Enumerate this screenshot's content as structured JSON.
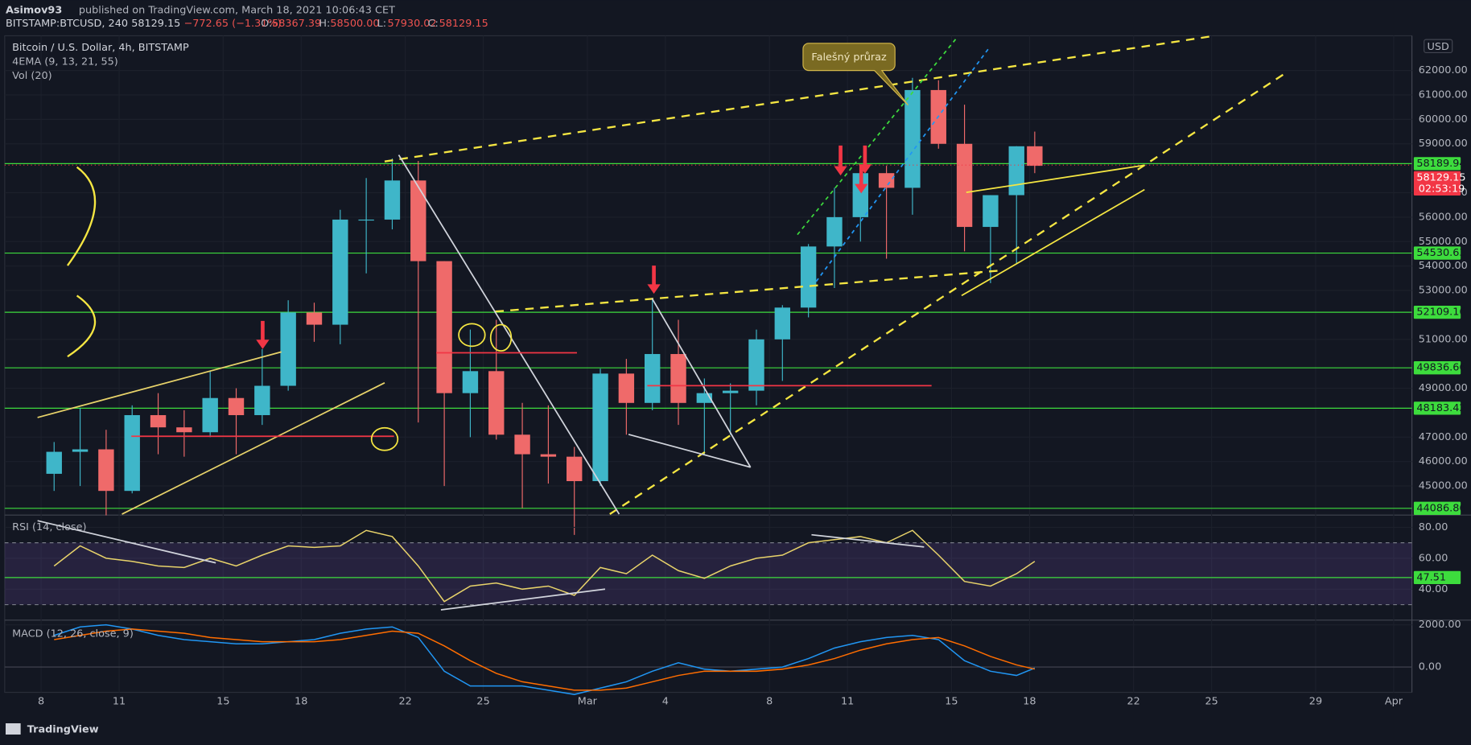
{
  "header": {
    "author": "Asimov93",
    "published": "published on TradingView.com, March 18, 2021 10:06:43 CET",
    "symbol": "BITSTAMP:BTCUSD, 240",
    "price": "58129.15",
    "change": "−772.65 (−1.31%)",
    "open_label": "O:",
    "open": "58367.39",
    "high_label": "H:",
    "high": "58500.00",
    "low_label": "L:",
    "low": "57930.02",
    "close_label": "C:",
    "close": "58129.15"
  },
  "legend": {
    "title": "Bitcoin / U.S. Dollar, 4h, BITSTAMP",
    "ema": "4EMA (9, 13, 21, 55)",
    "volume": "Vol (20)"
  },
  "currency": "USD",
  "callout": "Falešný průraz",
  "footer": "TradingView",
  "chart_data": [
    {
      "type": "candlestick",
      "up_color": "#3fb6c9",
      "down_color": "#ef6a6a",
      "level_color": "#3ddc3d",
      "last_color": "#f23645",
      "x": [
        8.5,
        9.5,
        10.5,
        11.5,
        12.5,
        13.5,
        14.5,
        15.5,
        16.5,
        17.5,
        18.5,
        19.5,
        20.5,
        21.5,
        22.5,
        23.5,
        24.5,
        25.5,
        26.5,
        27.5,
        28.5,
        29.5,
        30.5,
        31.5,
        32.5,
        33.5,
        34.5,
        35.5,
        36.5,
        37.5,
        38.5,
        39.5,
        40.5,
        41.5,
        42.5,
        43.5,
        44.5,
        45.5,
        46.2
      ],
      "open": [
        45500,
        46400,
        46500,
        44800,
        47900,
        47400,
        47200,
        48600,
        47900,
        49100,
        52100,
        51600,
        55900,
        55900,
        57500,
        54200,
        48800,
        49700,
        47100,
        46300,
        46200,
        45200,
        49600,
        48400,
        50400,
        48400,
        48800,
        48900,
        51000,
        52300,
        54800,
        56000,
        57800,
        57200,
        61200,
        59000,
        55600,
        56900,
        58900
      ],
      "high": [
        46800,
        48200,
        47300,
        48300,
        48800,
        48100,
        49700,
        49000,
        50600,
        52600,
        52500,
        56300,
        57600,
        58400,
        58300,
        54200,
        51400,
        51800,
        48400,
        48300,
        46600,
        49800,
        50200,
        52600,
        51800,
        49400,
        49200,
        51400,
        52400,
        54900,
        57200,
        57900,
        58100,
        61700,
        61600,
        60600,
        56900,
        58900,
        59500
      ],
      "low": [
        44800,
        45000,
        43800,
        44700,
        46300,
        46200,
        47000,
        46300,
        47500,
        48900,
        50900,
        50800,
        53700,
        55500,
        47600,
        45000,
        47000,
        46900,
        44100,
        45100,
        43000,
        45000,
        47100,
        48100,
        47500,
        46300,
        47100,
        48300,
        49300,
        51900,
        53100,
        55000,
        54300,
        56100,
        58800,
        54600,
        53300,
        54100,
        57800
      ],
      "close": [
        46400,
        46500,
        44800,
        47900,
        47400,
        47200,
        48600,
        47900,
        49100,
        52100,
        51600,
        55900,
        55900,
        57500,
        54200,
        48800,
        49700,
        47100,
        46300,
        46200,
        45200,
        49600,
        48400,
        50400,
        48400,
        48800,
        48900,
        51000,
        52300,
        54800,
        56000,
        57800,
        57200,
        61200,
        59000,
        55600,
        56900,
        58900,
        58100
      ],
      "xlim": [
        6.6,
        60.7
      ],
      "xticks": [
        8,
        11,
        15,
        18,
        22,
        25,
        {
          "value": 29,
          "label": "Mar"
        },
        {
          "value": 32,
          "label": "4"
        },
        {
          "value": 36,
          "label": "8"
        },
        {
          "value": 39,
          "label": "11"
        },
        {
          "value": 43,
          "label": "15"
        },
        {
          "value": 46,
          "label": "18"
        },
        {
          "value": 50,
          "label": "22"
        },
        {
          "value": 53,
          "label": "25"
        },
        {
          "value": 57,
          "label": "29"
        },
        {
          "value": 60,
          "label": "Apr"
        }
      ],
      "ylim": [
        43850,
        63420
      ],
      "yticks": [
        {
          "value": 62000,
          "label": "62000.00"
        },
        {
          "value": 61000,
          "label": "61000.00"
        },
        {
          "value": 60000,
          "label": "60000.00"
        },
        {
          "value": 59000,
          "label": "59000.00"
        },
        {
          "value": 57000,
          "label": "57000.00"
        },
        {
          "value": 56000,
          "label": "56000.00"
        },
        {
          "value": 55000,
          "label": "55000.00"
        },
        {
          "value": 54000,
          "label": "54000.00"
        },
        {
          "value": 53000,
          "label": "53000.00"
        },
        {
          "value": 51000,
          "label": "51000.00"
        },
        {
          "value": 49000,
          "label": "49000.00"
        },
        {
          "value": 47000,
          "label": "47000.00"
        },
        {
          "value": 46000,
          "label": "46000.00"
        },
        {
          "value": 45000,
          "label": "45000.00"
        }
      ],
      "levels": [
        58189.94,
        54530.63,
        52109.16,
        49836.66,
        48183.42,
        44086.86
      ],
      "last_price": 58129.15,
      "countdown": "02:53:19"
    },
    {
      "type": "line",
      "title": "RSI (14, close)",
      "color": "#e8d36a",
      "band": [
        30,
        70
      ],
      "level_color": "#3ddc3d",
      "x": [
        8.5,
        9.5,
        10.5,
        11.5,
        12.5,
        13.5,
        14.5,
        15.5,
        16.5,
        17.5,
        18.5,
        19.5,
        20.5,
        21.5,
        22.5,
        23.5,
        24.5,
        25.5,
        26.5,
        27.5,
        28.5,
        29.5,
        30.5,
        31.5,
        32.5,
        33.5,
        34.5,
        35.5,
        36.5,
        37.5,
        38.5,
        39.5,
        40.5,
        41.5,
        42.5,
        43.5,
        44.5,
        45.5,
        46.2
      ],
      "values": [
        55,
        68,
        60,
        58,
        55,
        54,
        60,
        55,
        62,
        68,
        67,
        68,
        78,
        74,
        55,
        32,
        42,
        44,
        40,
        42,
        36,
        54,
        50,
        62,
        52,
        47,
        55,
        60,
        62,
        70,
        72,
        74,
        70,
        78,
        62,
        45,
        42,
        50,
        58
      ],
      "xlim": [
        6.6,
        60.7
      ],
      "ylim": [
        20.6,
        87.3
      ],
      "yticks": [
        {
          "value": 80,
          "label": "80.00"
        },
        {
          "value": 60,
          "label": "60.00"
        },
        {
          "value": 40,
          "label": "40.00"
        }
      ],
      "levels": [
        47.51
      ]
    },
    {
      "type": "line",
      "title": "MACD (12, 26, close, 9)",
      "x": [
        8.5,
        9.5,
        10.5,
        11.5,
        12.5,
        13.5,
        14.5,
        15.5,
        16.5,
        17.5,
        18.5,
        19.5,
        20.5,
        21.5,
        22.5,
        23.5,
        24.5,
        25.5,
        26.5,
        27.5,
        28.5,
        29.5,
        30.5,
        31.5,
        32.5,
        33.5,
        34.5,
        35.5,
        36.5,
        37.5,
        38.5,
        39.5,
        40.5,
        41.5,
        42.5,
        43.5,
        44.5,
        45.5,
        46.2
      ],
      "series": [
        {
          "color": "#2196f3",
          "values": [
            1500,
            1900,
            2000,
            1800,
            1500,
            1300,
            1200,
            1100,
            1100,
            1200,
            1300,
            1600,
            1800,
            1900,
            1400,
            -200,
            -900,
            -900,
            -900,
            -1100,
            -1300,
            -1000,
            -700,
            -200,
            200,
            -100,
            -200,
            -100,
            0,
            400,
            900,
            1200,
            1400,
            1500,
            1300,
            300,
            -200,
            -400,
            -50
          ]
        },
        {
          "color": "#ff6d00",
          "values": [
            1300,
            1500,
            1700,
            1800,
            1700,
            1600,
            1400,
            1300,
            1200,
            1200,
            1200,
            1300,
            1500,
            1700,
            1600,
            1000,
            300,
            -300,
            -700,
            -900,
            -1100,
            -1100,
            -1000,
            -700,
            -400,
            -200,
            -200,
            -200,
            -100,
            100,
            400,
            800,
            1100,
            1300,
            1400,
            1000,
            500,
            100,
            -100
          ]
        }
      ],
      "xlim": [
        6.6,
        60.7
      ],
      "ylim": [
        -1200,
        2178
      ],
      "yticks": [
        {
          "value": 2000,
          "label": "2000.00"
        },
        {
          "value": 0,
          "label": "0.00"
        }
      ]
    }
  ]
}
